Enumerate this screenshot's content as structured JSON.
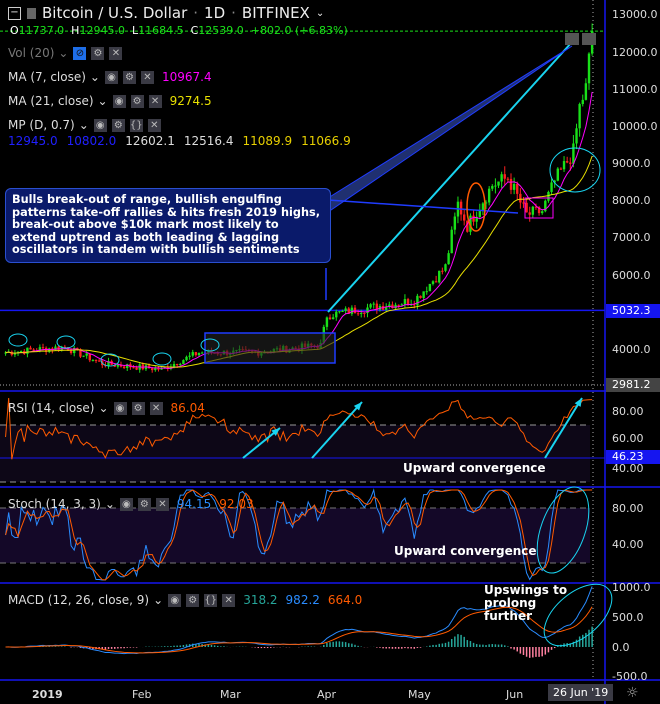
{
  "header": {
    "symbol": "Bitcoin / U.S. Dollar",
    "interval": "1D",
    "exchange": "BITFINEX",
    "ohlc": {
      "o_label": "O",
      "o": "11737.0",
      "h_label": "H",
      "h": "12945.0",
      "l_label": "L",
      "l": "11684.5",
      "c_label": "C",
      "c": "12539.0",
      "change": "+802.0 (+6.83%)"
    }
  },
  "indicators": {
    "vol": {
      "label": "Vol (20)"
    },
    "ma7": {
      "label": "MA (7, close)",
      "value": "10967.4",
      "color": "#ff00ff"
    },
    "ma21": {
      "label": "MA (21, close)",
      "value": "9274.5",
      "color": "#e8e000"
    },
    "mp": {
      "label": "MP (D, 0.7)",
      "values": [
        "12945.0",
        "10802.0",
        "12602.1",
        "12516.4",
        "11089.9",
        "11066.9"
      ]
    },
    "rsi": {
      "label": "RSI (14, close)",
      "value": "86.04",
      "color": "#ff5a00"
    },
    "stoch": {
      "label": "Stoch (14, 3, 3)",
      "k": "94.15",
      "d": "92.03"
    },
    "macd": {
      "label": "MACD (12, 26, close, 9)",
      "hist": "318.2",
      "macd": "982.2",
      "signal": "664.0"
    }
  },
  "annotations": {
    "main_note": "Bulls break-out of range, bullish engulfing patterns take-off rallies & hits fresh 2019 highs, break-out above $10k mark most likely to extend uptrend as both leading & lagging oscillators in tandem with bullish sentiments",
    "rsi_note": "Upward convergence",
    "stoch_note": "Upward convergence",
    "macd_note": "Upswings to prolong further"
  },
  "price_axis": {
    "ticks": [
      "13000.0",
      "12000.0",
      "11000.0",
      "10000.0",
      "9000.0",
      "8000.0",
      "7000.0",
      "6000.0",
      "4000.0"
    ],
    "tags": {
      "level": "5032.3",
      "cursor": "2981.2"
    }
  },
  "rsi_axis": {
    "ticks": [
      "80.00",
      "60.00",
      "40.00"
    ],
    "tag": "46.23"
  },
  "stoch_axis": {
    "ticks": [
      "80.00",
      "40.00"
    ]
  },
  "macd_axis": {
    "ticks": [
      "1000.0",
      "500.0",
      "0.0",
      "-500.0"
    ]
  },
  "time_axis": {
    "labels": [
      "2019",
      "Feb",
      "Mar",
      "Apr",
      "May",
      "Jun"
    ],
    "current": "26 Jun '19"
  },
  "chart_data": {
    "type": "candlestick",
    "title": "Bitcoin / U.S. Dollar · 1D · BITFINEX",
    "ylim": [
      3000,
      13200
    ],
    "support_level": 5032.3,
    "grid": false,
    "colors": {
      "up": "#19e019",
      "down": "#ff2020",
      "ma7": "#ff00ff",
      "ma21": "#e8e000",
      "annotation": "#1f3cff",
      "trend": "#19d4f0"
    },
    "price_keyframes": [
      [
        "2018-12-20",
        3900
      ],
      [
        "2019-01-08",
        4050
      ],
      [
        "2019-01-20",
        3600
      ],
      [
        "2019-02-08",
        3450
      ],
      [
        "2019-02-20",
        3900
      ],
      [
        "2019-03-10",
        3900
      ],
      [
        "2019-03-31",
        4100
      ],
      [
        "2019-04-02",
        4900
      ],
      [
        "2019-04-15",
        5100
      ],
      [
        "2019-04-30",
        5300
      ],
      [
        "2019-05-10",
        6200
      ],
      [
        "2019-05-14",
        7900
      ],
      [
        "2019-05-17",
        7300
      ],
      [
        "2019-05-25",
        8400
      ],
      [
        "2019-05-30",
        8600
      ],
      [
        "2019-06-05",
        7600
      ],
      [
        "2019-06-10",
        7700
      ],
      [
        "2019-06-14",
        8500
      ],
      [
        "2019-06-20",
        9300
      ],
      [
        "2019-06-22",
        10500
      ],
      [
        "2019-06-24",
        11000
      ],
      [
        "2019-06-26",
        12539
      ]
    ]
  }
}
